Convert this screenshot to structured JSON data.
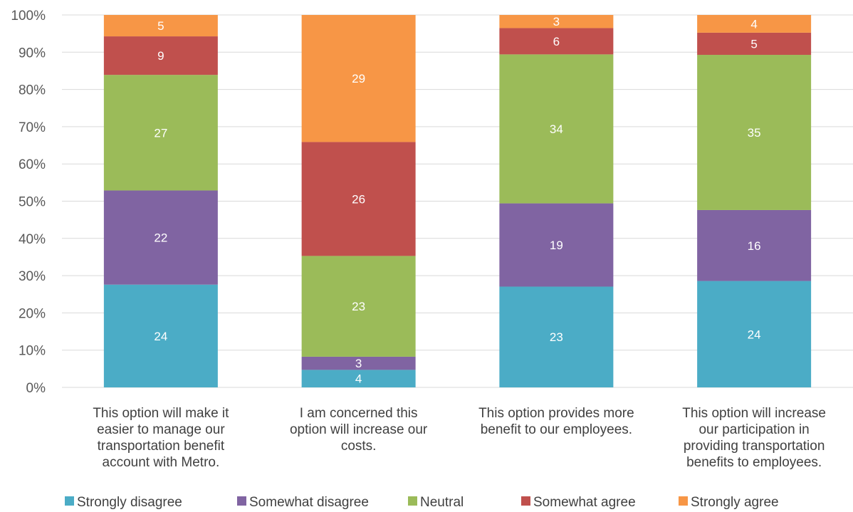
{
  "chart_data": {
    "type": "bar",
    "stacked": "percent",
    "categories": [
      [
        "This option will make it",
        "easier to manage our",
        "transportation benefit",
        "account with Metro."
      ],
      [
        "I am concerned this",
        "option will increase our",
        "costs."
      ],
      [
        "This option provides more",
        "benefit to our employees."
      ],
      [
        "This option will increase",
        "our participation in",
        "providing transportation",
        "benefits to employees."
      ]
    ],
    "series": [
      {
        "name": "Strongly disagree",
        "values": [
          24,
          4,
          23,
          24
        ],
        "color": "#4bacc6"
      },
      {
        "name": "Somewhat disagree",
        "values": [
          22,
          3,
          19,
          16
        ],
        "color": "#8064a2"
      },
      {
        "name": "Neutral",
        "values": [
          27,
          23,
          34,
          35
        ],
        "color": "#9bbb59"
      },
      {
        "name": "Somewhat agree",
        "values": [
          9,
          26,
          6,
          5
        ],
        "color": "#c0504d"
      },
      {
        "name": "Strongly agree",
        "values": [
          5,
          29,
          3,
          4
        ],
        "color": "#f79646"
      }
    ],
    "y_ticks": [
      "0%",
      "10%",
      "20%",
      "30%",
      "40%",
      "50%",
      "60%",
      "70%",
      "80%",
      "90%",
      "100%"
    ],
    "ylim": [
      0,
      100
    ],
    "grid": true,
    "legend_position": "bottom",
    "title": "",
    "xlabel": "",
    "ylabel": ""
  }
}
